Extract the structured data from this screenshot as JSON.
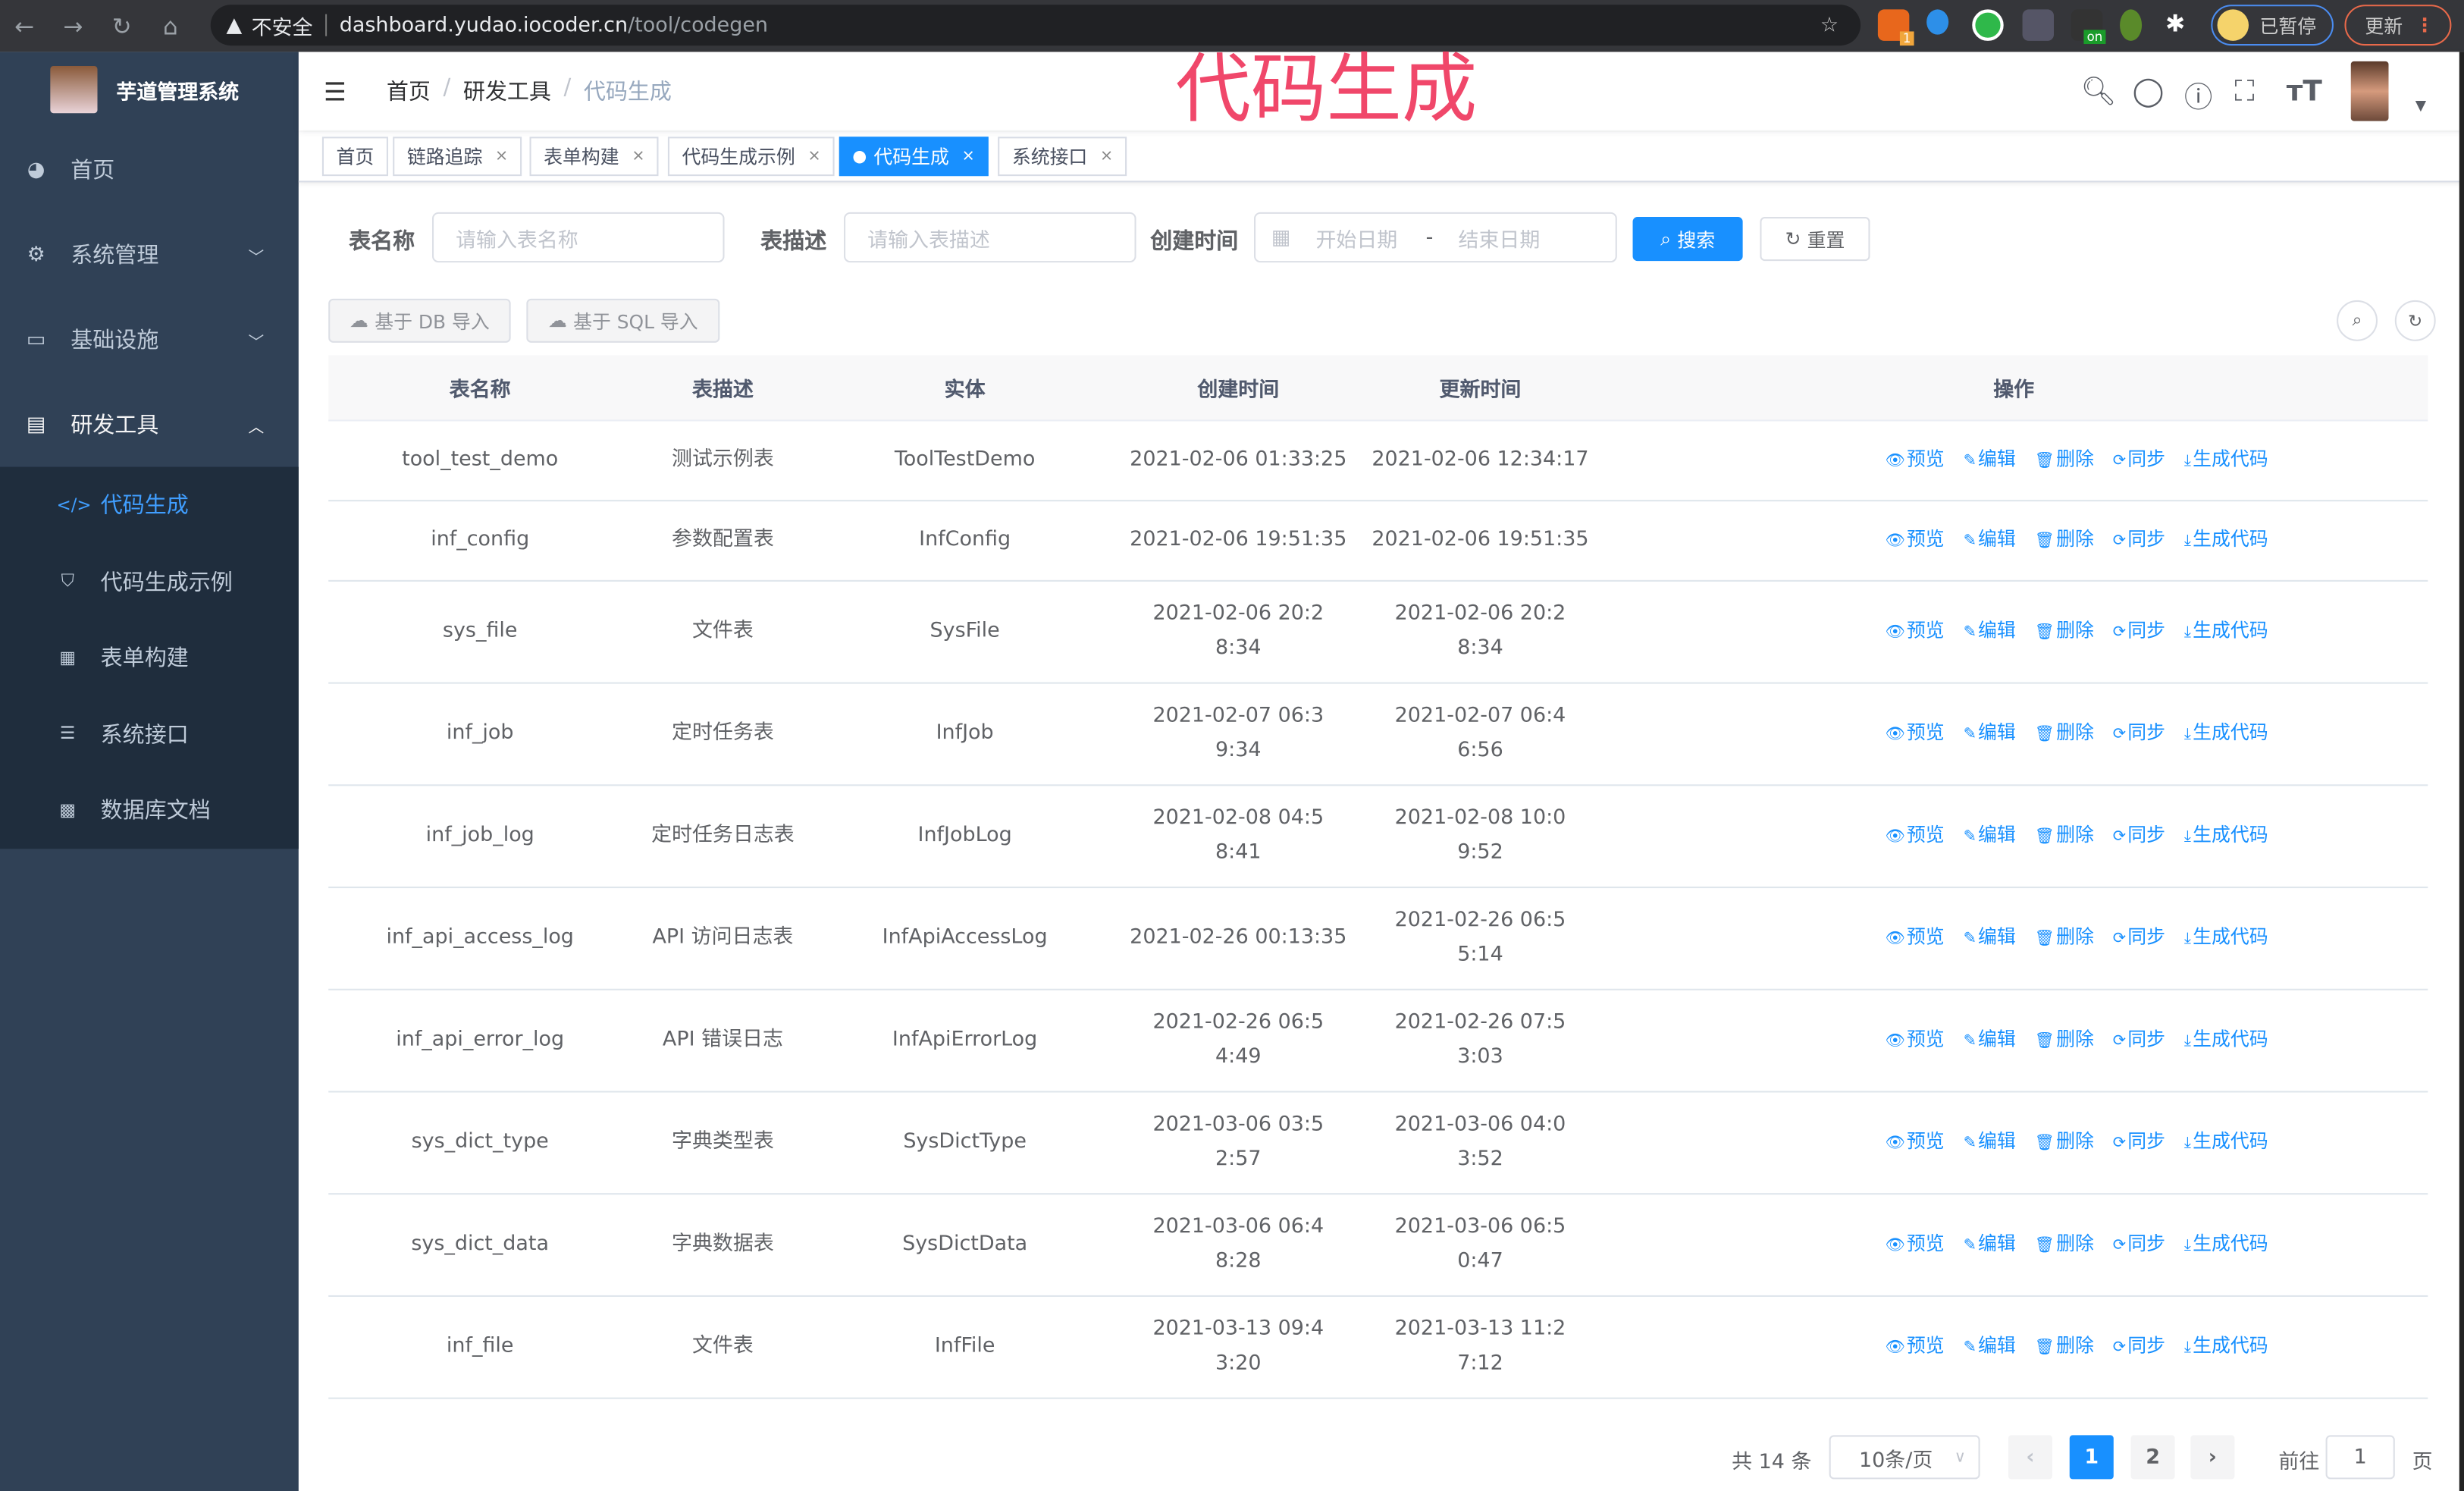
{
  "browser": {
    "url_warning": "不安全",
    "url_host": "dashboard.yudao.iocoder.cn",
    "url_path": "/tool/codegen",
    "profile_status": "已暂停",
    "update_label": "更新",
    "extension_badge": "1",
    "extension_on": "on"
  },
  "overlay_title": "代码生成",
  "sidebar": {
    "title": "芋道管理系统",
    "items": [
      {
        "label": "首页",
        "icon": "dashboard-icon"
      },
      {
        "label": "系统管理",
        "icon": "gear-icon"
      },
      {
        "label": "基础设施",
        "icon": "monitor-icon"
      },
      {
        "label": "研发工具",
        "icon": "toolbox-icon"
      }
    ],
    "subitems": [
      {
        "label": "代码生成",
        "icon": "code-icon",
        "active": true
      },
      {
        "label": "代码生成示例",
        "icon": "shield-icon"
      },
      {
        "label": "表单构建",
        "icon": "form-icon"
      },
      {
        "label": "系统接口",
        "icon": "sliders-icon"
      },
      {
        "label": "数据库文档",
        "icon": "table-icon"
      }
    ]
  },
  "breadcrumb": [
    "首页",
    "研发工具",
    "代码生成"
  ],
  "tags": [
    {
      "label": "首页"
    },
    {
      "label": "链路追踪"
    },
    {
      "label": "表单构建"
    },
    {
      "label": "代码生成示例"
    },
    {
      "label": "代码生成",
      "active": true
    },
    {
      "label": "系统接口"
    }
  ],
  "search": {
    "table_name_label": "表名称",
    "table_name_placeholder": "请输入表名称",
    "table_desc_label": "表描述",
    "table_desc_placeholder": "请输入表描述",
    "created_label": "创建时间",
    "start_placeholder": "开始日期",
    "range_sep": "-",
    "end_placeholder": "结束日期",
    "search_button": "搜索",
    "reset_button": "重置"
  },
  "toolbar": {
    "import_db": "基于 DB 导入",
    "import_sql": "基于 SQL 导入"
  },
  "table": {
    "columns": [
      "表名称",
      "表描述",
      "实体",
      "创建时间",
      "更新时间",
      "操作"
    ],
    "actions": [
      "预览",
      "编辑",
      "删除",
      "同步",
      "生成代码"
    ],
    "rows": [
      [
        "tool_test_demo",
        "测试示例表",
        "ToolTestDemo",
        "2021-02-06 01:33:25",
        "2021-02-06 12:34:17"
      ],
      [
        "inf_config",
        "参数配置表",
        "InfConfig",
        "2021-02-06 19:51:35",
        "2021-02-06 19:51:35"
      ],
      [
        "sys_file",
        "文件表",
        "SysFile",
        "2021-02-06 20:28:34",
        "2021-02-06 20:28:34"
      ],
      [
        "inf_job",
        "定时任务表",
        "InfJob",
        "2021-02-07 06:39:34",
        "2021-02-07 06:46:56"
      ],
      [
        "inf_job_log",
        "定时任务日志表",
        "InfJobLog",
        "2021-02-08 04:58:41",
        "2021-02-08 10:09:52"
      ],
      [
        "inf_api_access_log",
        "API 访问日志表",
        "InfApiAccessLog",
        "2021-02-26 00:13:35",
        "2021-02-26 06:55:14"
      ],
      [
        "inf_api_error_log",
        "API 错误日志",
        "InfApiErrorLog",
        "2021-02-26 06:54:49",
        "2021-02-26 07:53:03"
      ],
      [
        "sys_dict_type",
        "字典类型表",
        "SysDictType",
        "2021-03-06 03:52:57",
        "2021-03-06 04:03:52"
      ],
      [
        "sys_dict_data",
        "字典数据表",
        "SysDictData",
        "2021-03-06 06:48:28",
        "2021-03-06 06:50:47"
      ],
      [
        "inf_file",
        "文件表",
        "InfFile",
        "2021-03-13 09:43:20",
        "2021-03-13 11:27:12"
      ]
    ]
  },
  "pagination": {
    "total": "共 14 条",
    "page_size": "10条/页",
    "pages": [
      "1",
      "2"
    ],
    "current": "1",
    "goto_label": "前往",
    "goto_value": "1",
    "page_suffix": "页"
  },
  "colors": {
    "primary": "#1890ff",
    "sidebar": "#304156",
    "overlay": "#f0476a"
  }
}
